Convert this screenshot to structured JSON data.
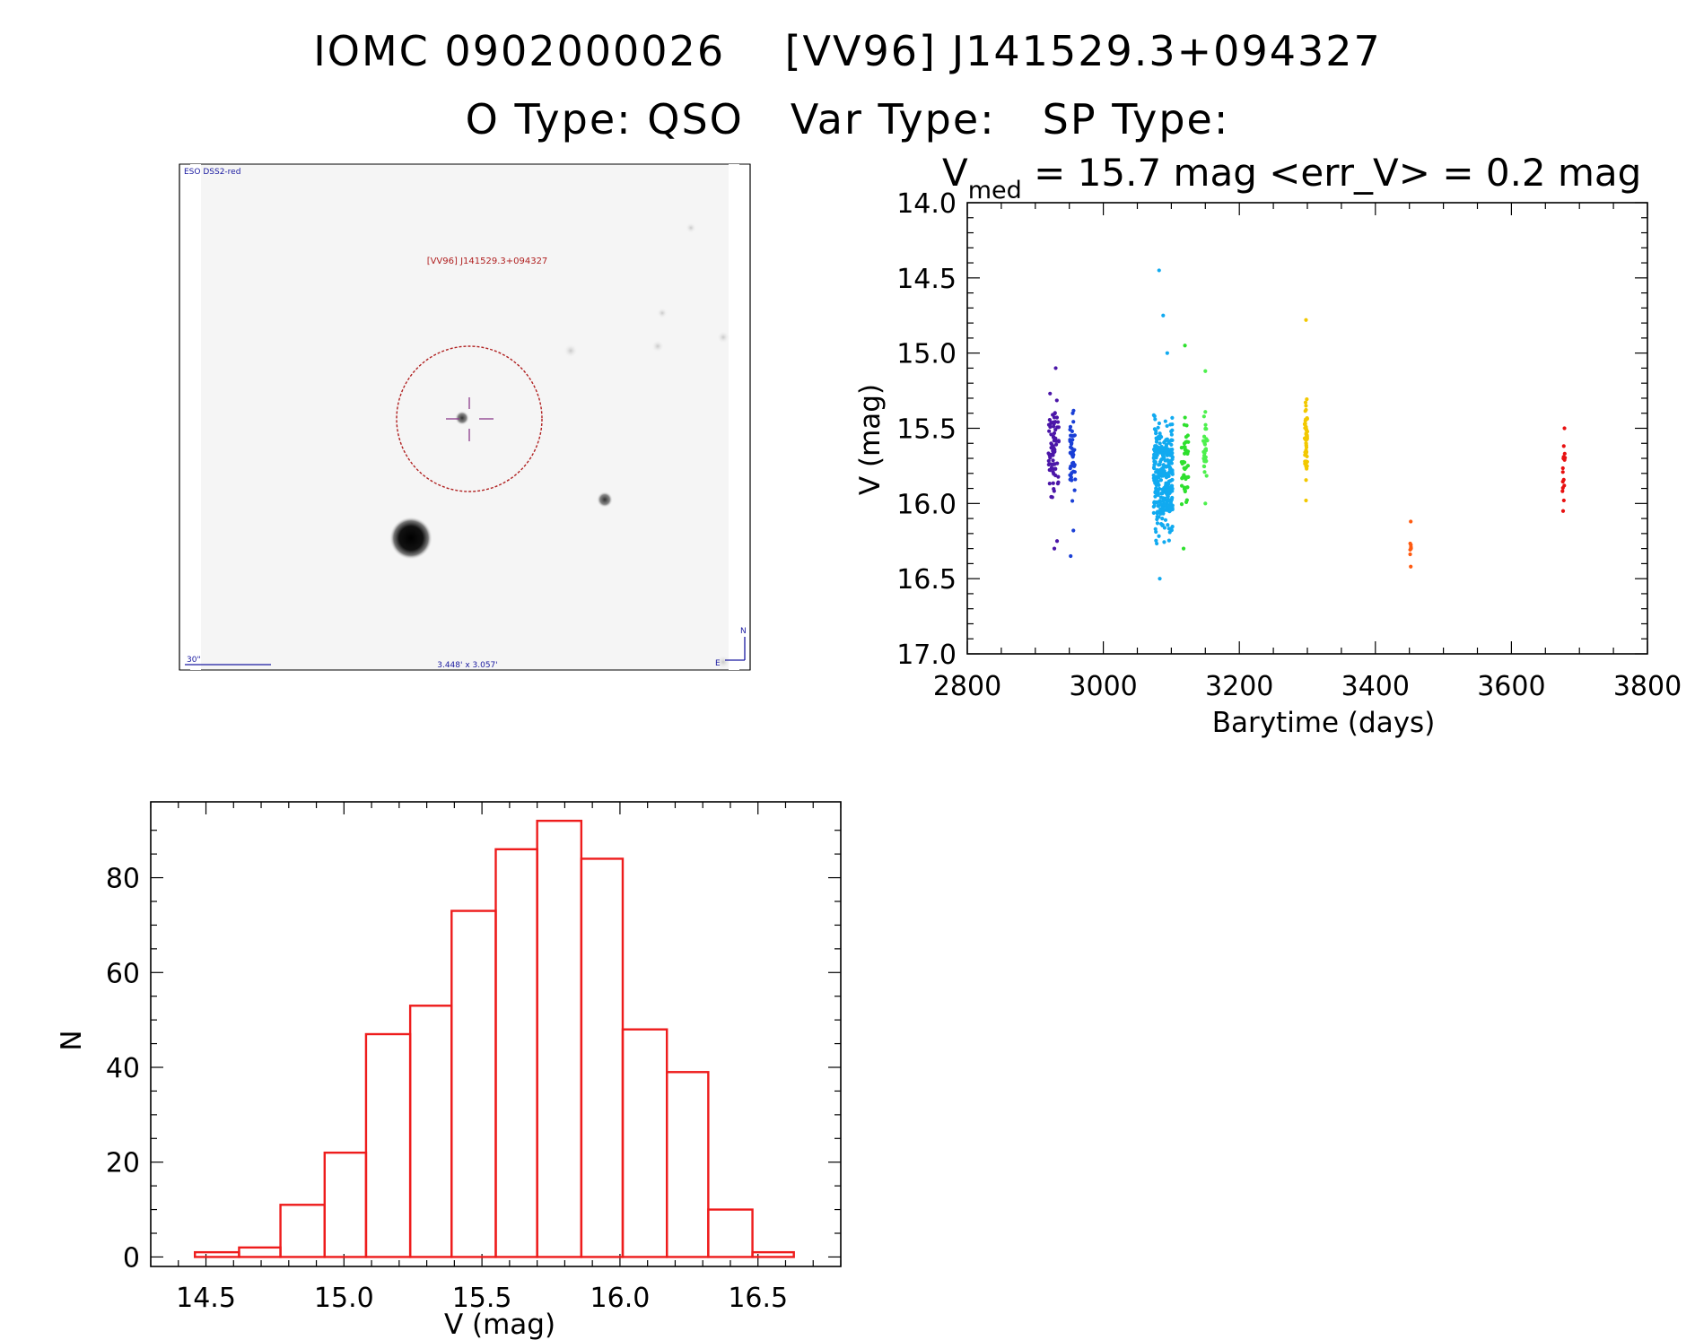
{
  "header": {
    "id_label": "IOMC 0902000026",
    "name_label": "[VV96] J141529.3+094327",
    "otype": "O Type: QSO",
    "vartype": "Var Type:",
    "sptype": "SP Type:"
  },
  "finder": {
    "survey_label": "ESO DSS2-red",
    "object_label": "[VV96] J141529.3+094327",
    "scale_label": "30\"",
    "fov_label": "3.448' x 3.057'",
    "north_label": "N",
    "east_label": "E",
    "circle_color": "#b02020",
    "crosshair_color": "#8a3a8a"
  },
  "chart_data": [
    {
      "type": "scatter",
      "title_prefix": "V",
      "title_subscript": "med",
      "title_rest": " = 15.7 mag <err_V> = 0.2 mag",
      "xlabel": "Barytime (days)",
      "ylabel": "V (mag)",
      "xlim": [
        2800,
        3800
      ],
      "ylim": [
        17.0,
        14.0
      ],
      "y_inverted": true,
      "xticks": [
        "2800",
        "3000",
        "3200",
        "3400",
        "3600",
        "3800"
      ],
      "yticks": [
        "14.0",
        "14.5",
        "15.0",
        "15.5",
        "16.0",
        "16.5",
        "17.0"
      ],
      "series": [
        {
          "color": "#4b16a8",
          "x_center": 2927,
          "x_spread": 8,
          "y_center": 15.65,
          "y_spread": 0.3,
          "count": 75,
          "outliers": [
            [
              2930,
              15.1
            ],
            [
              2928,
              16.3
            ],
            [
              2932,
              16.25
            ]
          ]
        },
        {
          "color": "#1a3fd6",
          "x_center": 2955,
          "x_spread": 4,
          "y_center": 15.72,
          "y_spread": 0.28,
          "count": 45,
          "outliers": [
            [
              2955,
              15.4
            ],
            [
              2952,
              16.35
            ],
            [
              2956,
              16.18
            ]
          ]
        },
        {
          "color": "#11aaf0",
          "x_center": 3088,
          "x_spread": 14,
          "y_center": 15.85,
          "y_spread": 0.38,
          "count": 320,
          "outliers": [
            [
              3082,
              14.45
            ],
            [
              3083,
              16.5
            ],
            [
              3088,
              14.75
            ],
            [
              3094,
              15.0
            ]
          ]
        },
        {
          "color": "#2ee02e",
          "x_center": 3120,
          "x_spread": 5,
          "y_center": 15.75,
          "y_spread": 0.32,
          "count": 45,
          "outliers": [
            [
              3120,
              14.95
            ],
            [
              3118,
              16.3
            ]
          ]
        },
        {
          "color": "#4df04d",
          "x_center": 3150,
          "x_spread": 3,
          "y_center": 15.6,
          "y_spread": 0.26,
          "count": 32,
          "outliers": [
            [
              3150,
              15.12
            ],
            [
              3150,
              16.0
            ]
          ]
        },
        {
          "color": "#f2c800",
          "x_center": 3298,
          "x_spread": 2,
          "y_center": 15.58,
          "y_spread": 0.3,
          "count": 55,
          "outliers": [
            [
              3298,
              14.78
            ],
            [
              3298,
              15.98
            ]
          ]
        },
        {
          "color": "#ff5a10",
          "x_center": 3452,
          "x_spread": 1,
          "y_center": 16.27,
          "y_spread": 0.11,
          "count": 6,
          "outliers": [
            [
              3452,
              16.12
            ],
            [
              3452,
              16.42
            ]
          ]
        },
        {
          "color": "#e81010",
          "x_center": 3677,
          "x_spread": 2,
          "y_center": 15.8,
          "y_spread": 0.2,
          "count": 14,
          "outliers": [
            [
              3678,
              15.5
            ],
            [
              3676,
              16.05
            ]
          ]
        }
      ]
    },
    {
      "type": "bar",
      "subtype": "histogram",
      "xlabel": "V (mag)",
      "ylabel": "N",
      "xlim": [
        14.3,
        16.8
      ],
      "ylim": [
        -2,
        96
      ],
      "xticks": [
        "14.5",
        "15.0",
        "15.5",
        "16.0",
        "16.5"
      ],
      "yticks": [
        "0",
        "20",
        "40",
        "60",
        "80"
      ],
      "color": "#ee1c1c",
      "bins": [
        {
          "left": 14.46,
          "right": 14.62,
          "count": 1
        },
        {
          "left": 14.62,
          "right": 14.77,
          "count": 2
        },
        {
          "left": 14.77,
          "right": 14.93,
          "count": 11
        },
        {
          "left": 14.93,
          "right": 15.08,
          "count": 22
        },
        {
          "left": 15.08,
          "right": 15.24,
          "count": 47
        },
        {
          "left": 15.24,
          "right": 15.39,
          "count": 53
        },
        {
          "left": 15.39,
          "right": 15.55,
          "count": 73
        },
        {
          "left": 15.55,
          "right": 15.7,
          "count": 86
        },
        {
          "left": 15.7,
          "right": 15.86,
          "count": 92
        },
        {
          "left": 15.86,
          "right": 16.01,
          "count": 84
        },
        {
          "left": 16.01,
          "right": 16.17,
          "count": 48
        },
        {
          "left": 16.17,
          "right": 16.32,
          "count": 39
        },
        {
          "left": 16.32,
          "right": 16.48,
          "count": 10
        },
        {
          "left": 16.48,
          "right": 16.63,
          "count": 1
        }
      ]
    }
  ]
}
